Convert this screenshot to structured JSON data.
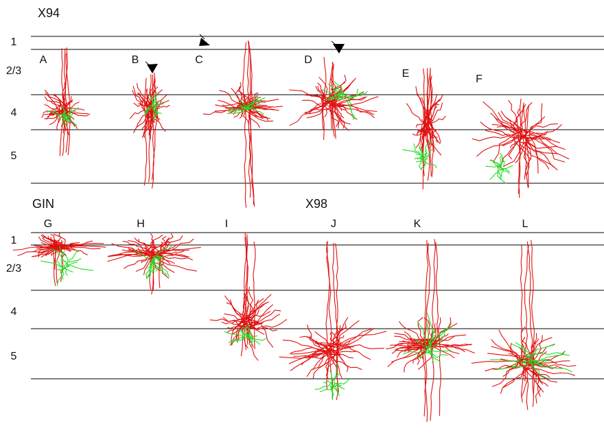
{
  "groups": [
    {
      "title": "X94",
      "layers": [
        "1",
        "2/3",
        "4",
        "5"
      ],
      "panels": [
        "A",
        "B",
        "C",
        "D",
        "E",
        "F"
      ]
    },
    {
      "title": "GIN",
      "title_2": "X98",
      "layers": [
        "1",
        "2/3",
        "4",
        "5"
      ],
      "panels": [
        "G",
        "H",
        "I",
        "J",
        "K",
        "L"
      ]
    }
  ]
}
